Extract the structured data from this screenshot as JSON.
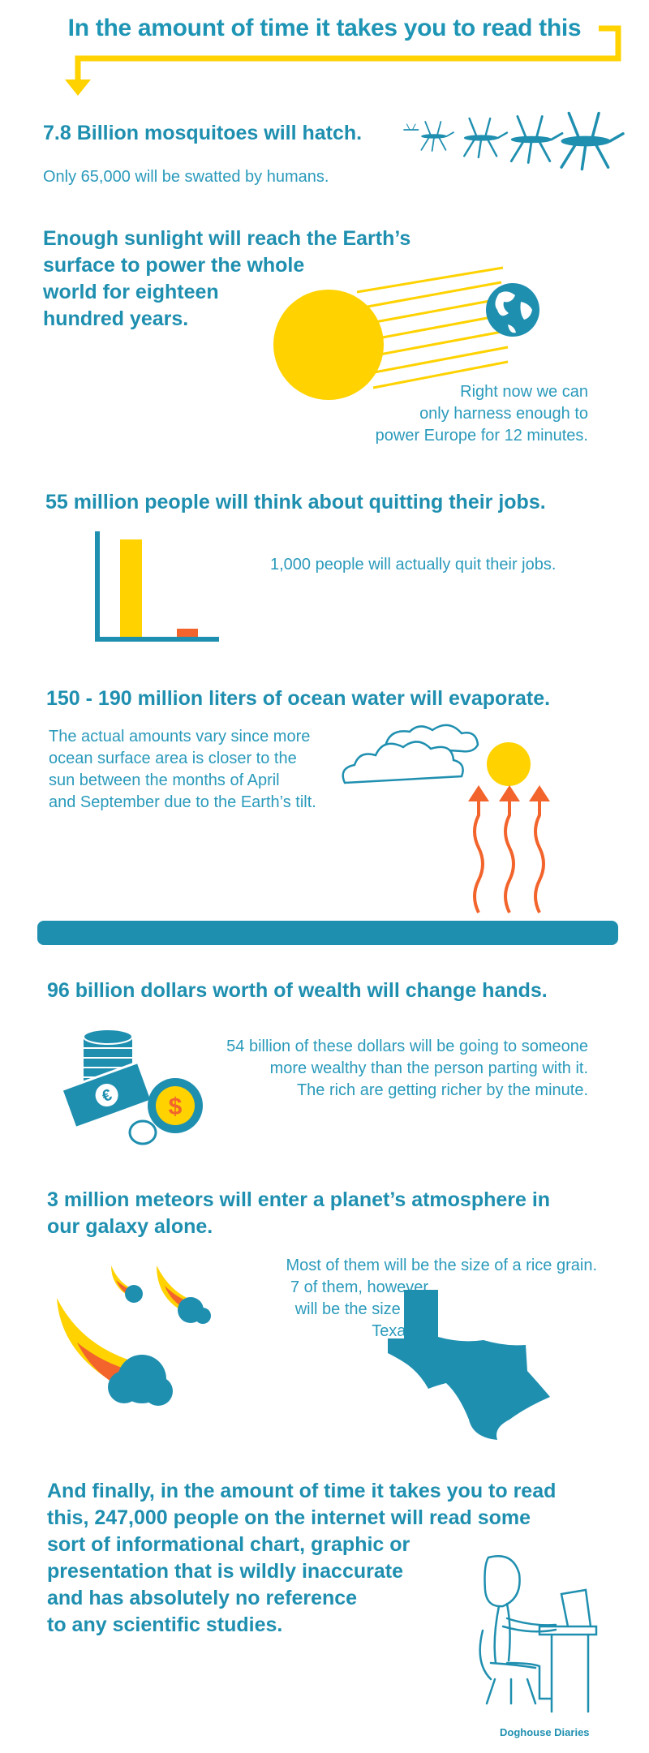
{
  "title": "In the amount of time it takes you to read this",
  "colors": {
    "teal": "#1f8fb0",
    "yellow": "#ffd200",
    "orange": "#f2642c",
    "white": "#ffffff"
  },
  "sections": {
    "mosquitoes": {
      "heading": "7.8 Billion mosquitoes will hatch.",
      "text": "Only 65,000 will be swatted by humans.",
      "icon": "mosquito-icon"
    },
    "sunlight": {
      "heading_lines": [
        "Enough sunlight will reach the Earth’s",
        "surface to power the whole",
        "world for eighteen",
        "hundred years."
      ],
      "text_lines": [
        "Right now we can",
        "only harness enough to",
        "power Europe for 12 minutes."
      ],
      "icons": [
        "sun-icon",
        "earth-icon"
      ]
    },
    "jobs": {
      "heading": "55 million people will think about quitting their jobs.",
      "text": "1,000 people will actually quit their jobs.",
      "icon": "bar-chart-icon",
      "chart": {
        "think_about_quitting": 55000000,
        "actually_quit": 1000
      }
    },
    "ocean": {
      "heading": "150 - 190 million liters of ocean water will evaporate.",
      "text_lines": [
        "The actual amounts vary since more",
        "ocean surface area is closer to the",
        "sun between the months of April",
        "and September due to the Earth’s tilt."
      ],
      "icons": [
        "cloud-icon",
        "sun-icon",
        "evaporation-arrow-icon",
        "ocean-icon"
      ]
    },
    "wealth": {
      "heading": "96 billion dollars worth of wealth will change hands.",
      "text_lines": [
        "54 billion of these dollars will be going to someone",
        "more wealthy than the person parting with it.",
        "The rich are getting richer by the minute."
      ],
      "icons": [
        "coin-stack-icon",
        "banknote-icon",
        "dollar-coin-icon"
      ],
      "coin_symbol": "$",
      "note_symbol": "€"
    },
    "meteors": {
      "heading_lines": [
        "3 million meteors will enter a planet’s atmosphere in",
        "our galaxy alone."
      ],
      "text_lines": [
        "Most of them will be the size of a rice grain.",
        "7 of them, however,",
        "will be the size of",
        "Texas."
      ],
      "icons": [
        "meteor-icon",
        "texas-map-icon"
      ]
    },
    "finally": {
      "heading_lines": [
        "And finally, in the amount of time it takes you to read",
        "this, 247,000 people on the internet will read some",
        "sort of informational chart, graphic or",
        "presentation that is wildly inaccurate",
        "and has absolutely no reference",
        "to any scientific studies."
      ],
      "icon": "person-at-computer-icon"
    }
  },
  "credit": "Doghouse Diaries"
}
